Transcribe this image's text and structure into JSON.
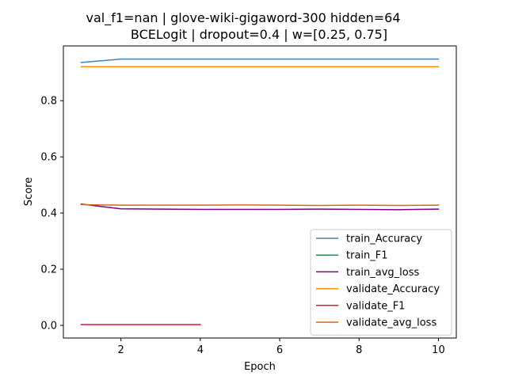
{
  "chart_data": {
    "type": "line",
    "title_lines": [
      "val_f1=nan | glove-wiki-gigaword-300  hidden=64",
      "BCELogit | dropout=0.4 | w=[0.25, 0.75]"
    ],
    "xlabel": "Epoch",
    "ylabel": "Score",
    "xlim": [
      0.55,
      10.45
    ],
    "ylim": [
      -0.045,
      0.995
    ],
    "x_ticks": [
      2,
      4,
      6,
      8,
      10
    ],
    "y_ticks": [
      0.0,
      0.2,
      0.4,
      0.6,
      0.8
    ],
    "grid": false,
    "legend_position": "lower-right",
    "series": [
      {
        "name": "train_Accuracy",
        "color": "#4682b4",
        "x": [
          1,
          2,
          3,
          4,
          5,
          6,
          7,
          8,
          9,
          10
        ],
        "values": [
          0.936,
          0.948,
          0.948,
          0.948,
          0.948,
          0.948,
          0.948,
          0.948,
          0.948,
          0.948
        ]
      },
      {
        "name": "train_F1",
        "color": "#2e8b57",
        "x": [],
        "values": []
      },
      {
        "name": "train_avg_loss",
        "color": "#800080",
        "x": [
          1,
          2,
          3,
          4,
          5,
          6,
          7,
          8,
          9,
          10
        ],
        "values": [
          0.432,
          0.415,
          0.414,
          0.413,
          0.413,
          0.413,
          0.414,
          0.413,
          0.412,
          0.414
        ]
      },
      {
        "name": "validate_Accuracy",
        "color": "#ff8c00",
        "x": [
          1,
          2,
          3,
          4,
          5,
          6,
          7,
          8,
          9,
          10
        ],
        "values": [
          0.921,
          0.921,
          0.921,
          0.921,
          0.921,
          0.921,
          0.921,
          0.921,
          0.921,
          0.921
        ]
      },
      {
        "name": "validate_F1",
        "color": "#dc143c",
        "x": [
          1,
          2,
          3,
          4
        ],
        "values": [
          0.003,
          0.003,
          0.003,
          0.003
        ]
      },
      {
        "name": "validate_avg_loss",
        "color": "#d2691e",
        "x": [
          1,
          2,
          3,
          4,
          5,
          6,
          7,
          8,
          9,
          10
        ],
        "values": [
          0.43,
          0.428,
          0.428,
          0.428,
          0.429,
          0.428,
          0.427,
          0.428,
          0.427,
          0.428
        ]
      }
    ]
  }
}
